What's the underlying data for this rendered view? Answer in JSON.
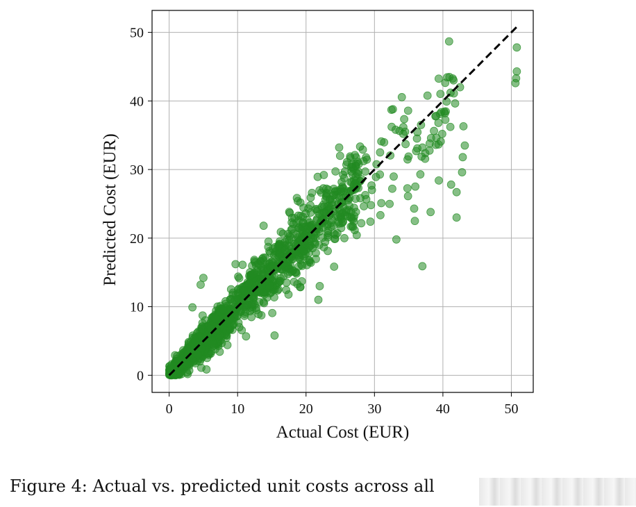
{
  "chart_data": {
    "type": "scatter",
    "xlabel": "Actual Cost (EUR)",
    "ylabel": "Predicted Cost (EUR)",
    "xlim": [
      -2.5,
      53.2
    ],
    "ylim": [
      -2.5,
      53.2
    ],
    "xticks": [
      0,
      10,
      20,
      30,
      40,
      50
    ],
    "yticks": [
      0,
      10,
      20,
      30,
      40,
      50
    ],
    "grid": true,
    "reference_line": {
      "style": "dashed",
      "color": "#000000",
      "from": [
        0,
        0
      ],
      "to": [
        50.8,
        50.8
      ]
    },
    "point_color": "#228B22",
    "point_opacity": 0.55,
    "points_summary": "thousands of points clustered tightly along y = x from 0 to about 25 EUR, widening spread above 25 EUR",
    "outliers": [
      [
        50.8,
        47.8
      ],
      [
        50.8,
        44.3
      ],
      [
        50.6,
        42.6
      ],
      [
        50.7,
        43.3
      ],
      [
        43.0,
        36.3
      ],
      [
        43.2,
        33.5
      ],
      [
        42.9,
        31.8
      ],
      [
        42.8,
        29.6
      ],
      [
        42.0,
        26.7
      ],
      [
        42.0,
        23.0
      ],
      [
        41.2,
        27.8
      ],
      [
        39.4,
        28.4
      ],
      [
        38.2,
        23.8
      ],
      [
        37.0,
        15.9
      ],
      [
        35.9,
        22.5
      ],
      [
        35.8,
        24.3
      ],
      [
        33.2,
        19.8
      ],
      [
        32.6,
        27.2
      ],
      [
        31.0,
        25.1
      ],
      [
        15.4,
        5.8
      ],
      [
        21.8,
        11.0
      ],
      [
        22.0,
        13.0
      ],
      [
        4.6,
        13.2
      ],
      [
        3.4,
        9.9
      ],
      [
        5.0,
        14.2
      ],
      [
        9.7,
        16.2
      ],
      [
        13.8,
        21.8
      ],
      [
        18.8,
        25.4
      ],
      [
        22.6,
        29.2
      ],
      [
        42.5,
        42.0
      ],
      [
        41.6,
        41.1
      ],
      [
        40.3,
        38.2
      ],
      [
        39.0,
        37.8
      ],
      [
        36.8,
        36.5
      ],
      [
        34.2,
        35.2
      ],
      [
        33.1,
        35.8
      ],
      [
        31.0,
        34.1
      ],
      [
        28.3,
        32.9
      ],
      [
        26.0,
        31.1
      ]
    ]
  },
  "caption": {
    "text": "Figure 4: Actual vs. predicted unit costs across all"
  }
}
